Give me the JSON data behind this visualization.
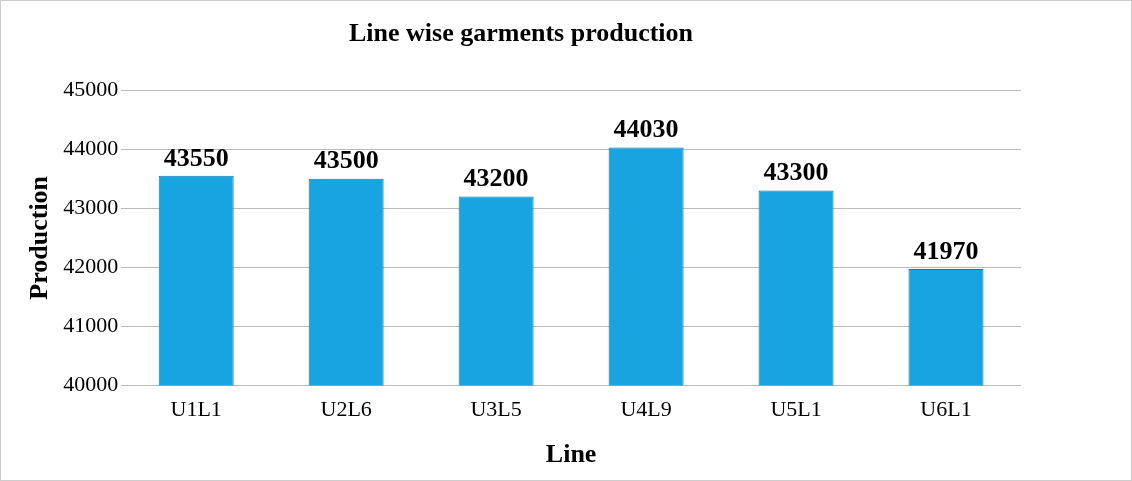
{
  "chart_data": {
    "type": "bar",
    "title": "Line wise garments production",
    "xlabel": "Line",
    "ylabel": "Production",
    "categories": [
      "U1L1",
      "U2L6",
      "U3L5",
      "U4L9",
      "U5L1",
      "U6L1"
    ],
    "values": [
      43550,
      43500,
      43200,
      44030,
      43300,
      41970
    ],
    "color": "#18a4e0",
    "ylim": [
      40000,
      45000
    ],
    "yticks": [
      40000,
      41000,
      42000,
      43000,
      44000,
      45000
    ],
    "grid": "y",
    "data_labels": true,
    "legend": false
  }
}
